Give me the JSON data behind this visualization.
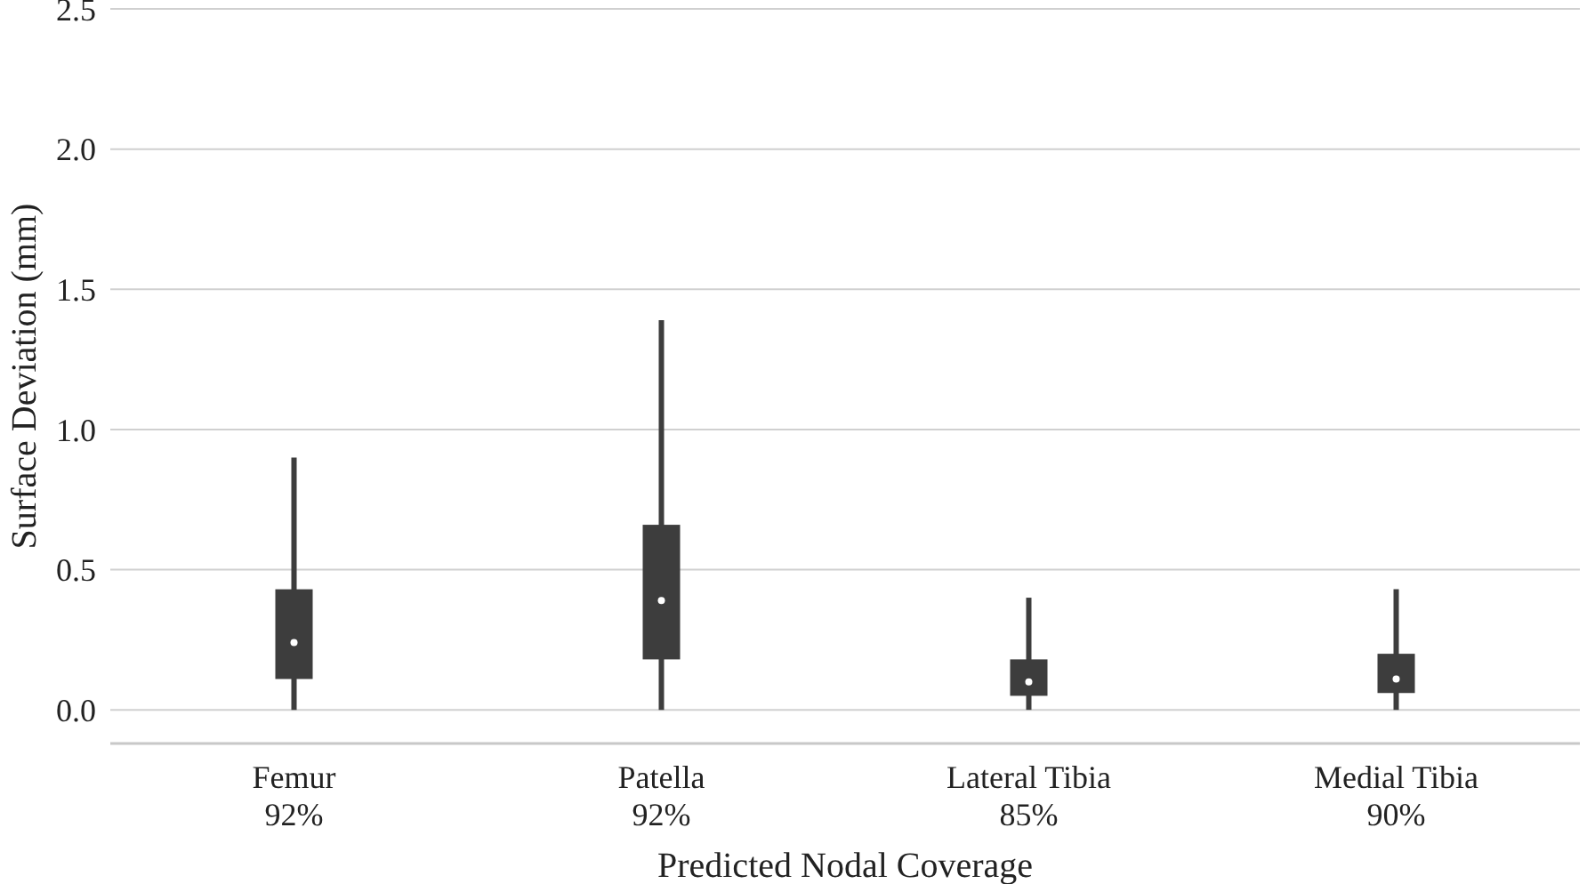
{
  "chart_data": {
    "type": "box",
    "xlabel": "Predicted Nodal Coverage",
    "ylabel": "Surface Deviation (mm)",
    "categories": [
      "Femur\n92%",
      "Patella\n92%",
      "Lateral Tibia\n85%",
      "Medial Tibia\n90%"
    ],
    "color": "#3d3d3d",
    "boxes": [
      {
        "low": 0,
        "q1": 0.11,
        "median": 0.24,
        "q3": 0.43,
        "high": 0.9
      },
      {
        "low": 0,
        "q1": 0.18,
        "median": 0.39,
        "q3": 0.66,
        "high": 1.39
      },
      {
        "low": 0,
        "q1": 0.05,
        "median": 0.1,
        "q3": 0.18,
        "high": 0.4
      },
      {
        "low": 0,
        "q1": 0.06,
        "median": 0.11,
        "q3": 0.2,
        "high": 0.43
      }
    ],
    "ylim": [
      -0.12,
      2.5
    ],
    "yticks": [
      {
        "value": 0,
        "label": "0.0"
      },
      {
        "value": 0.5,
        "label": "0.5"
      },
      {
        "value": 1,
        "label": "1.0"
      },
      {
        "value": 1.5,
        "label": "1.5"
      },
      {
        "value": 2,
        "label": "2.0"
      },
      {
        "value": 2.5,
        "label": "2.5"
      }
    ],
    "grid": "y"
  }
}
